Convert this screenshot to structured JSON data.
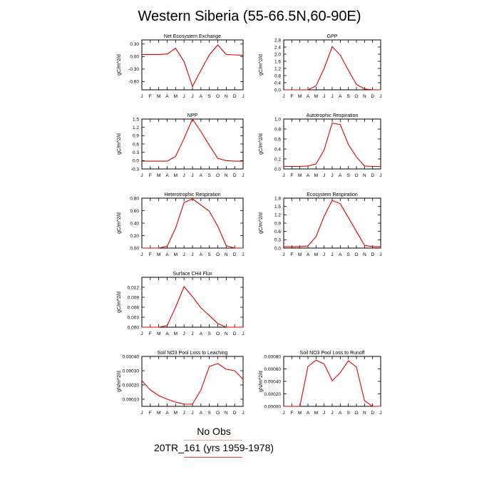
{
  "page": {
    "title": "Western Siberia (55-66.5N,60-90E)"
  },
  "legend": {
    "entries": [
      {
        "label": "No Obs",
        "color": "#f4a0a0"
      },
      {
        "label": "20TR_161 (yrs 1959-1978)",
        "color": "#ff3b3b"
      }
    ]
  },
  "style": {
    "line_color": "#e00000"
  },
  "chart_data": [
    {
      "type": "line",
      "title": "Net Ecosystem Exchange",
      "ylabel": "gC/m^2/d",
      "categories": [
        "J",
        "F",
        "M",
        "A",
        "M",
        "J",
        "J",
        "A",
        "S",
        "O",
        "N",
        "D",
        "J"
      ],
      "values": [
        0.05,
        0.05,
        0.05,
        0.06,
        0.2,
        -0.12,
        -0.72,
        -0.33,
        0.04,
        0.28,
        0.05,
        0.04,
        0.03
      ],
      "ylim": [
        -0.8,
        0.4
      ],
      "yticks": [
        0.3,
        0.0,
        -0.3,
        -0.6
      ],
      "ytick_labels": [
        "0.30",
        "0.00",
        "-0.30",
        "-0.60"
      ]
    },
    {
      "type": "line",
      "title": "GPP",
      "ylabel": "gC/m^2/d",
      "categories": [
        "J",
        "F",
        "M",
        "A",
        "M",
        "J",
        "J",
        "A",
        "S",
        "O",
        "N",
        "D",
        "J"
      ],
      "values": [
        0.0,
        0.0,
        0.0,
        0.0,
        0.22,
        1.2,
        2.42,
        1.95,
        1.1,
        0.3,
        0.05,
        0.0,
        0.0
      ],
      "ylim": [
        0,
        2.8
      ],
      "yticks": [
        0,
        0.4,
        0.8,
        1.2,
        1.6,
        2.0,
        2.4,
        2.8
      ],
      "ytick_labels": [
        "0.0",
        "0.4",
        "0.8",
        "1.2",
        "1.6",
        "2.0",
        "2.4",
        "2.8"
      ]
    },
    {
      "type": "line",
      "title": "NPP",
      "ylabel": "gC/m^2/d",
      "categories": [
        "J",
        "F",
        "M",
        "A",
        "M",
        "J",
        "J",
        "A",
        "S",
        "O",
        "N",
        "D",
        "J"
      ],
      "values": [
        -0.02,
        -0.02,
        -0.02,
        -0.02,
        0.15,
        0.8,
        1.5,
        1.05,
        0.55,
        0.08,
        0.0,
        -0.02,
        -0.02
      ],
      "ylim": [
        -0.3,
        1.5
      ],
      "yticks": [
        -0.3,
        0.0,
        0.3,
        0.6,
        0.9,
        1.2,
        1.5
      ],
      "ytick_labels": [
        "-0.3",
        "0.0",
        "0.3",
        "0.6",
        "0.9",
        "1.2",
        "1.5"
      ]
    },
    {
      "type": "line",
      "title": "Autotrophic Respiration",
      "ylabel": "gC/m^2/d",
      "categories": [
        "J",
        "F",
        "M",
        "A",
        "M",
        "J",
        "J",
        "A",
        "S",
        "O",
        "N",
        "D",
        "J"
      ],
      "values": [
        0.05,
        0.05,
        0.05,
        0.06,
        0.1,
        0.38,
        0.92,
        0.89,
        0.49,
        0.24,
        0.06,
        0.05,
        0.05
      ],
      "ylim": [
        0,
        1.0
      ],
      "yticks": [
        0,
        0.2,
        0.4,
        0.6,
        0.8,
        1.0
      ],
      "ytick_labels": [
        "0.0",
        "0.2",
        "0.4",
        "0.6",
        "0.8",
        "1.0"
      ]
    },
    {
      "type": "line",
      "title": "Heterotrophic Respiration",
      "ylabel": "gC/m^2/d",
      "categories": [
        "J",
        "F",
        "M",
        "A",
        "M",
        "J",
        "J",
        "A",
        "S",
        "O",
        "N",
        "D",
        "J"
      ],
      "values": [
        0.0,
        0.0,
        0.0,
        0.03,
        0.32,
        0.73,
        0.79,
        0.69,
        0.59,
        0.35,
        0.04,
        0.0,
        0.0
      ],
      "ylim": [
        0,
        0.8
      ],
      "yticks": [
        0,
        0.2,
        0.4,
        0.6,
        0.8
      ],
      "ytick_labels": [
        "0.00",
        "0.20",
        "0.40",
        "0.60",
        "0.80"
      ]
    },
    {
      "type": "line",
      "title": "Ecosystem Respiration",
      "ylabel": "gC/m^2/d",
      "categories": [
        "J",
        "F",
        "M",
        "A",
        "M",
        "J",
        "J",
        "A",
        "S",
        "O",
        "N",
        "D",
        "J"
      ],
      "values": [
        0.05,
        0.05,
        0.05,
        0.08,
        0.41,
        1.15,
        1.72,
        1.6,
        1.1,
        0.6,
        0.1,
        0.05,
        0.05
      ],
      "ylim": [
        0,
        1.8
      ],
      "yticks": [
        0,
        0.3,
        0.6,
        0.9,
        1.2,
        1.5,
        1.8
      ],
      "ytick_labels": [
        "0.0",
        "0.3",
        "0.6",
        "0.9",
        "1.2",
        "1.5",
        "1.8"
      ]
    },
    {
      "type": "line",
      "title": "Surface CH4 Flux",
      "ylabel": "gC/m^2/d",
      "categories": [
        "J",
        "F",
        "M",
        "A",
        "M",
        "J",
        "J",
        "A",
        "S",
        "O",
        "N",
        "D",
        "J"
      ],
      "values": [
        0.0,
        0.0,
        0.0,
        0.0005,
        0.006,
        0.0122,
        0.0092,
        0.0058,
        0.0035,
        0.0011,
        0.0,
        0.0,
        0.0
      ],
      "ylim": [
        0,
        0.015
      ],
      "yticks": [
        0,
        0.003,
        0.006,
        0.009,
        0.012
      ],
      "ytick_labels": [
        "0.000",
        "0.003",
        "0.006",
        "0.009",
        "0.012"
      ]
    },
    {
      "type": "line",
      "title": "Soil NO3 Pool Loss to Leaching",
      "ylabel": "gN/m^2/d",
      "categories": [
        "J",
        "F",
        "M",
        "A",
        "M",
        "J",
        "J",
        "A",
        "S",
        "O",
        "N",
        "D",
        "J"
      ],
      "values": [
        0.00023,
        0.000165,
        0.000125,
        0.0001,
        8e-05,
        6.5e-05,
        6.5e-05,
        0.000165,
        0.00033,
        0.00035,
        0.00031,
        0.0003,
        0.00024
      ],
      "ylim": [
        5e-05,
        0.0004
      ],
      "yticks": [
        0.0001,
        0.0002,
        0.0003,
        0.0004
      ],
      "ytick_labels": [
        "0.00010",
        "0.00020",
        "0.00030",
        "0.00040"
      ]
    },
    {
      "type": "line",
      "title": "Soil NO3 Pool Loss to Runoff",
      "ylabel": "gN/m^2/d",
      "categories": [
        "J",
        "F",
        "M",
        "A",
        "M",
        "J",
        "J",
        "A",
        "S",
        "O",
        "N",
        "D",
        "J"
      ],
      "values": [
        0.0,
        0.0,
        0.0,
        0.00064,
        0.00074,
        0.00068,
        0.00041,
        0.00054,
        0.00073,
        0.00063,
        9e-05,
        0.0,
        0.0
      ],
      "ylim": [
        0,
        0.0008
      ],
      "yticks": [
        0,
        0.0002,
        0.0004,
        0.0006,
        0.0008
      ],
      "ytick_labels": [
        "0.00000",
        "0.00020",
        "0.00040",
        "0.00060",
        "0.00080"
      ]
    }
  ]
}
